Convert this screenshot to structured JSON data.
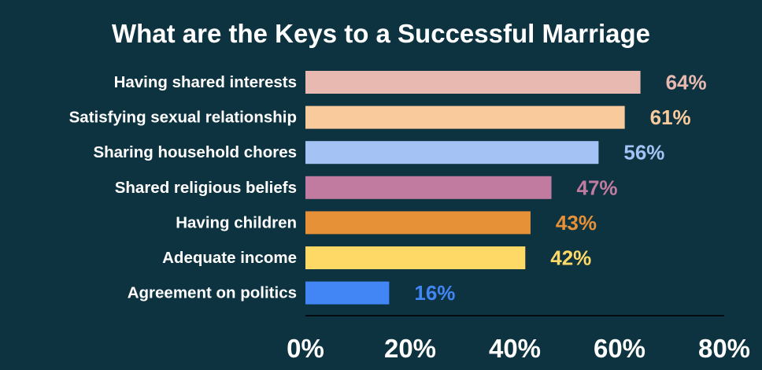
{
  "chart_data": {
    "type": "bar",
    "orientation": "horizontal",
    "title": "What are the Keys to a Successful Marriage",
    "xlabel": "",
    "ylabel": "",
    "xlim": [
      0,
      80
    ],
    "x_ticks": [
      "0%",
      "20%",
      "40%",
      "60%",
      "80%"
    ],
    "grid": false,
    "legend": "none",
    "value_suffix": "%",
    "categories": [
      "Having shared interests",
      "Satisfying sexual relationship",
      "Sharing household chores",
      "Shared religious beliefs",
      "Having children",
      "Adequate income",
      "Agreement on politics"
    ],
    "values": [
      64,
      61,
      56,
      47,
      43,
      42,
      16
    ],
    "colors": [
      "#e8b9b0",
      "#f9cb9c",
      "#a4c2f4",
      "#c27ba0",
      "#e69138",
      "#ffd966",
      "#4285f4"
    ]
  },
  "background_color": "#0d3340",
  "axis_color": "#000000"
}
